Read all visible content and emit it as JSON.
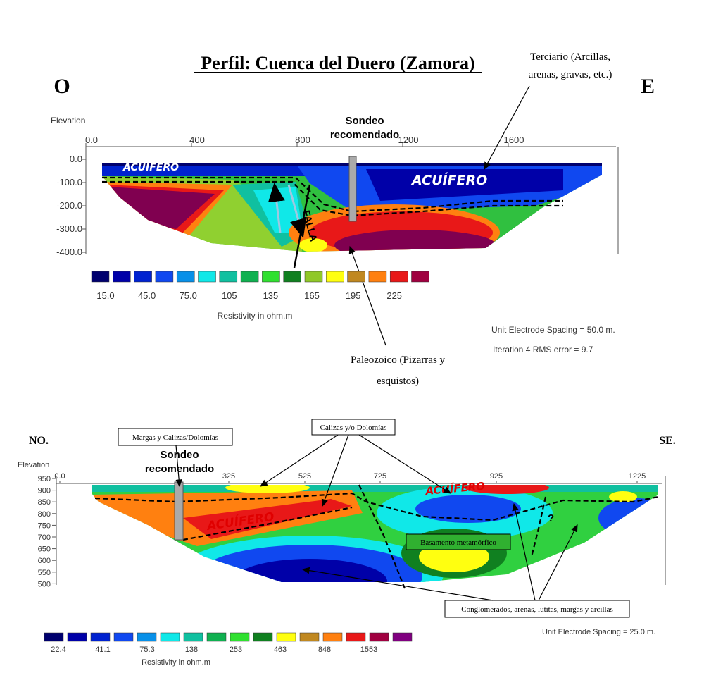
{
  "top": {
    "title": "Perfil: Cuenca del Duero (Zamora)",
    "west": "O",
    "east": "E",
    "y_label": "Elevation",
    "x_ticks": [
      "0.0",
      "400",
      "800",
      "1200",
      "1600"
    ],
    "y_ticks": [
      "0.0",
      "-100.0",
      "-200.0",
      "-300.0",
      "-400.0"
    ],
    "borehole": [
      "Sondeo",
      "recomendado"
    ],
    "terciario": [
      "Terciario (Arcillas,",
      "arenas, gravas, etc.)"
    ],
    "aquifer_left": "ACUÍFERO",
    "aquifer_right": "ACUÍFERO",
    "fault": "FALLA",
    "legend": {
      "colors": [
        "#00006e",
        "#0000a8",
        "#0022d0",
        "#1048f0",
        "#0890e8",
        "#10e8e8",
        "#10c0a0",
        "#10b050",
        "#30e030",
        "#108020",
        "#90c828",
        "#ffff10",
        "#c08820",
        "#ff8010",
        "#e81818",
        "#a00040"
      ],
      "values": [
        "15.0",
        "45.0",
        "75.0",
        "105",
        "135",
        "165",
        "195",
        "225"
      ],
      "label": "Resistivity in ohm.m"
    },
    "spacing": "Unit Electrode Spacing = 50.0 m.",
    "rms": "Iteration 4 RMS error = 9.7",
    "paleozoico": [
      "Paleozoico (Pizarras y",
      "esquistos)"
    ]
  },
  "bottom": {
    "west": "NO.",
    "east": "SE.",
    "y_label": "Elevation",
    "x_ticks": [
      "0.0",
      "325",
      "525",
      "725",
      "925",
      "1225"
    ],
    "y_ticks": [
      "950",
      "900",
      "850",
      "800",
      "750",
      "700",
      "650",
      "600",
      "550",
      "500"
    ],
    "borehole": [
      "Sondeo",
      "recomendado"
    ],
    "margas_box": "Margas y Calizas/Dolomías",
    "calizas_box": "Calizas y/o Dolomías",
    "aquifer_left": "ACUÍFERO",
    "aquifer_right": "ACUÍFERO",
    "basamento": "Basamento metamórfico",
    "question": "?",
    "conglomerados": "Conglomerados, arenas, lutitas, margas y arcillas",
    "spacing": "Unit Electrode Spacing = 25.0 m.",
    "legend": {
      "colors": [
        "#00006e",
        "#0000a8",
        "#0022d0",
        "#1048f0",
        "#0890e8",
        "#10e8e8",
        "#10c0a0",
        "#10b050",
        "#30e030",
        "#108020",
        "#ffff10",
        "#c08820",
        "#ff8010",
        "#e81818",
        "#a00040",
        "#800080"
      ],
      "values": [
        "22.4",
        "41.1",
        "75.3",
        "138",
        "253",
        "463",
        "848",
        "1553"
      ],
      "label": "Resistivity in ohm.m"
    }
  }
}
